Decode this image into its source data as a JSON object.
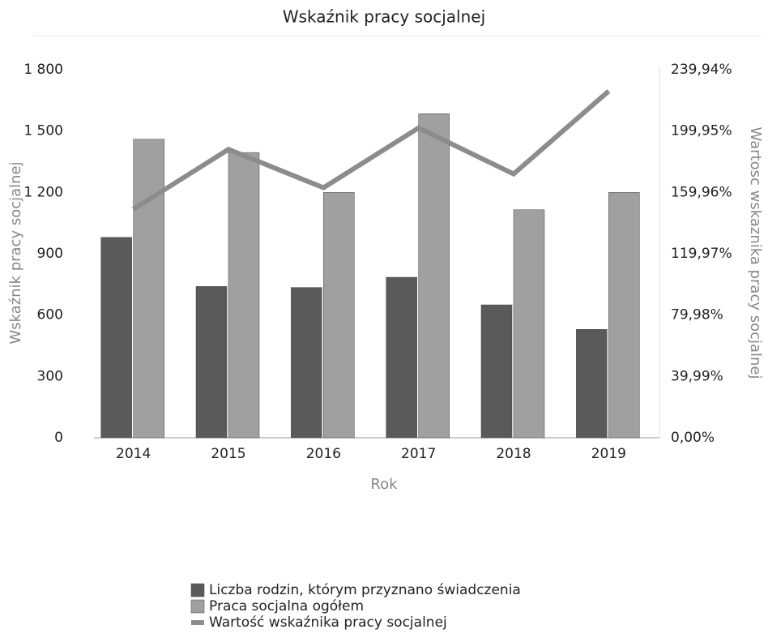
{
  "chart_data": {
    "type": "bar-line",
    "title": "Wskaźnik pracy socjalnej",
    "x_label": "Rok",
    "y_label": "Wskaźnik pracy socjalnej",
    "y2_label": "Wartosc wskaznika pracy socjalnej",
    "categories": [
      "2014",
      "2015",
      "2016",
      "2017",
      "2018",
      "2019"
    ],
    "series": [
      {
        "name": "Liczba rodzin, którym przyznano świadczenia",
        "type": "bar",
        "color": "#5a5a5a",
        "values": [
          980,
          740,
          735,
          785,
          650,
          530
        ]
      },
      {
        "name": "Praca socjalna ogółem",
        "type": "bar",
        "color": "#a0a0a0",
        "values": [
          1460,
          1395,
          1200,
          1585,
          1115,
          1200
        ]
      },
      {
        "name": "Wartość wskaźnika pracy socjalnej",
        "type": "line",
        "axis": "y2",
        "color": "#8c8c8c",
        "values": [
          149,
          188,
          163,
          202,
          172,
          226
        ]
      }
    ],
    "ylim": [
      0,
      1800
    ],
    "yticks": [
      0,
      300,
      600,
      900,
      {
        "value": 1200,
        "label": "1 200"
      },
      {
        "value": 1500,
        "label": "1 500"
      },
      {
        "value": 1800,
        "label": "1 800"
      }
    ],
    "y2lim": [
      0,
      239.94
    ],
    "y2ticks": [
      {
        "value": 0,
        "label": "0,00%"
      },
      {
        "value": 39.99,
        "label": "39,99%"
      },
      {
        "value": 79.98,
        "label": "79,98%"
      },
      {
        "value": 119.97,
        "label": "119,97%"
      },
      {
        "value": 159.96,
        "label": "159,96%"
      },
      {
        "value": 199.95,
        "label": "199,95%"
      },
      {
        "value": 239.94,
        "label": "239,94%"
      }
    ],
    "grid": false
  }
}
